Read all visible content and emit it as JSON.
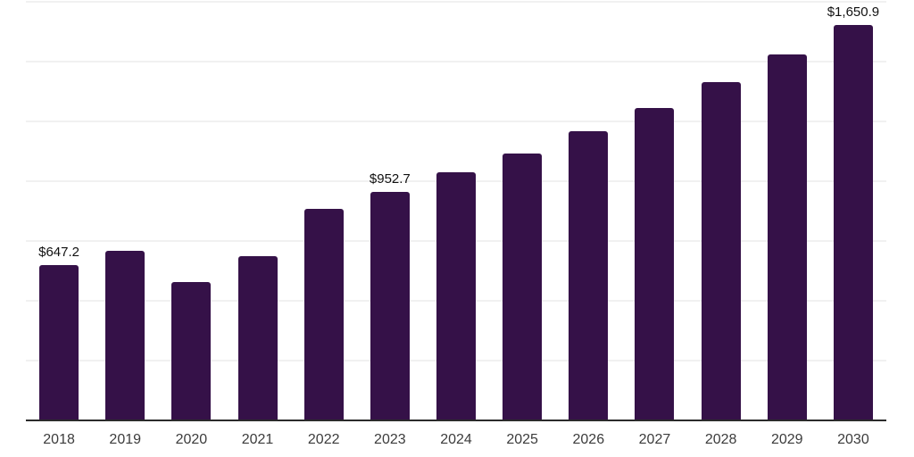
{
  "chart_data": {
    "type": "bar",
    "title": "",
    "xlabel": "",
    "ylabel": "",
    "categories": [
      "2018",
      "2019",
      "2020",
      "2021",
      "2022",
      "2023",
      "2024",
      "2025",
      "2026",
      "2027",
      "2028",
      "2029",
      "2030"
    ],
    "values": [
      647.2,
      705,
      575,
      684,
      879,
      952.7,
      1032,
      1113,
      1205,
      1304,
      1412,
      1527,
      1650.9
    ],
    "bar_labels": [
      "$647.2",
      null,
      null,
      null,
      null,
      "$952.7",
      null,
      null,
      null,
      null,
      null,
      null,
      "$1,650.9"
    ],
    "ylim": [
      0,
      1750
    ],
    "gridline_step": 250,
    "grid": "horizontal-only",
    "legend_position": "none",
    "colors": {
      "bar_fill": "#351148",
      "gridline": "#f1f1f1",
      "axis_line": "#2b2b2b",
      "value_label_text": "#111111",
      "tick_label_text": "#3c3c3c",
      "background": "#ffffff"
    }
  }
}
